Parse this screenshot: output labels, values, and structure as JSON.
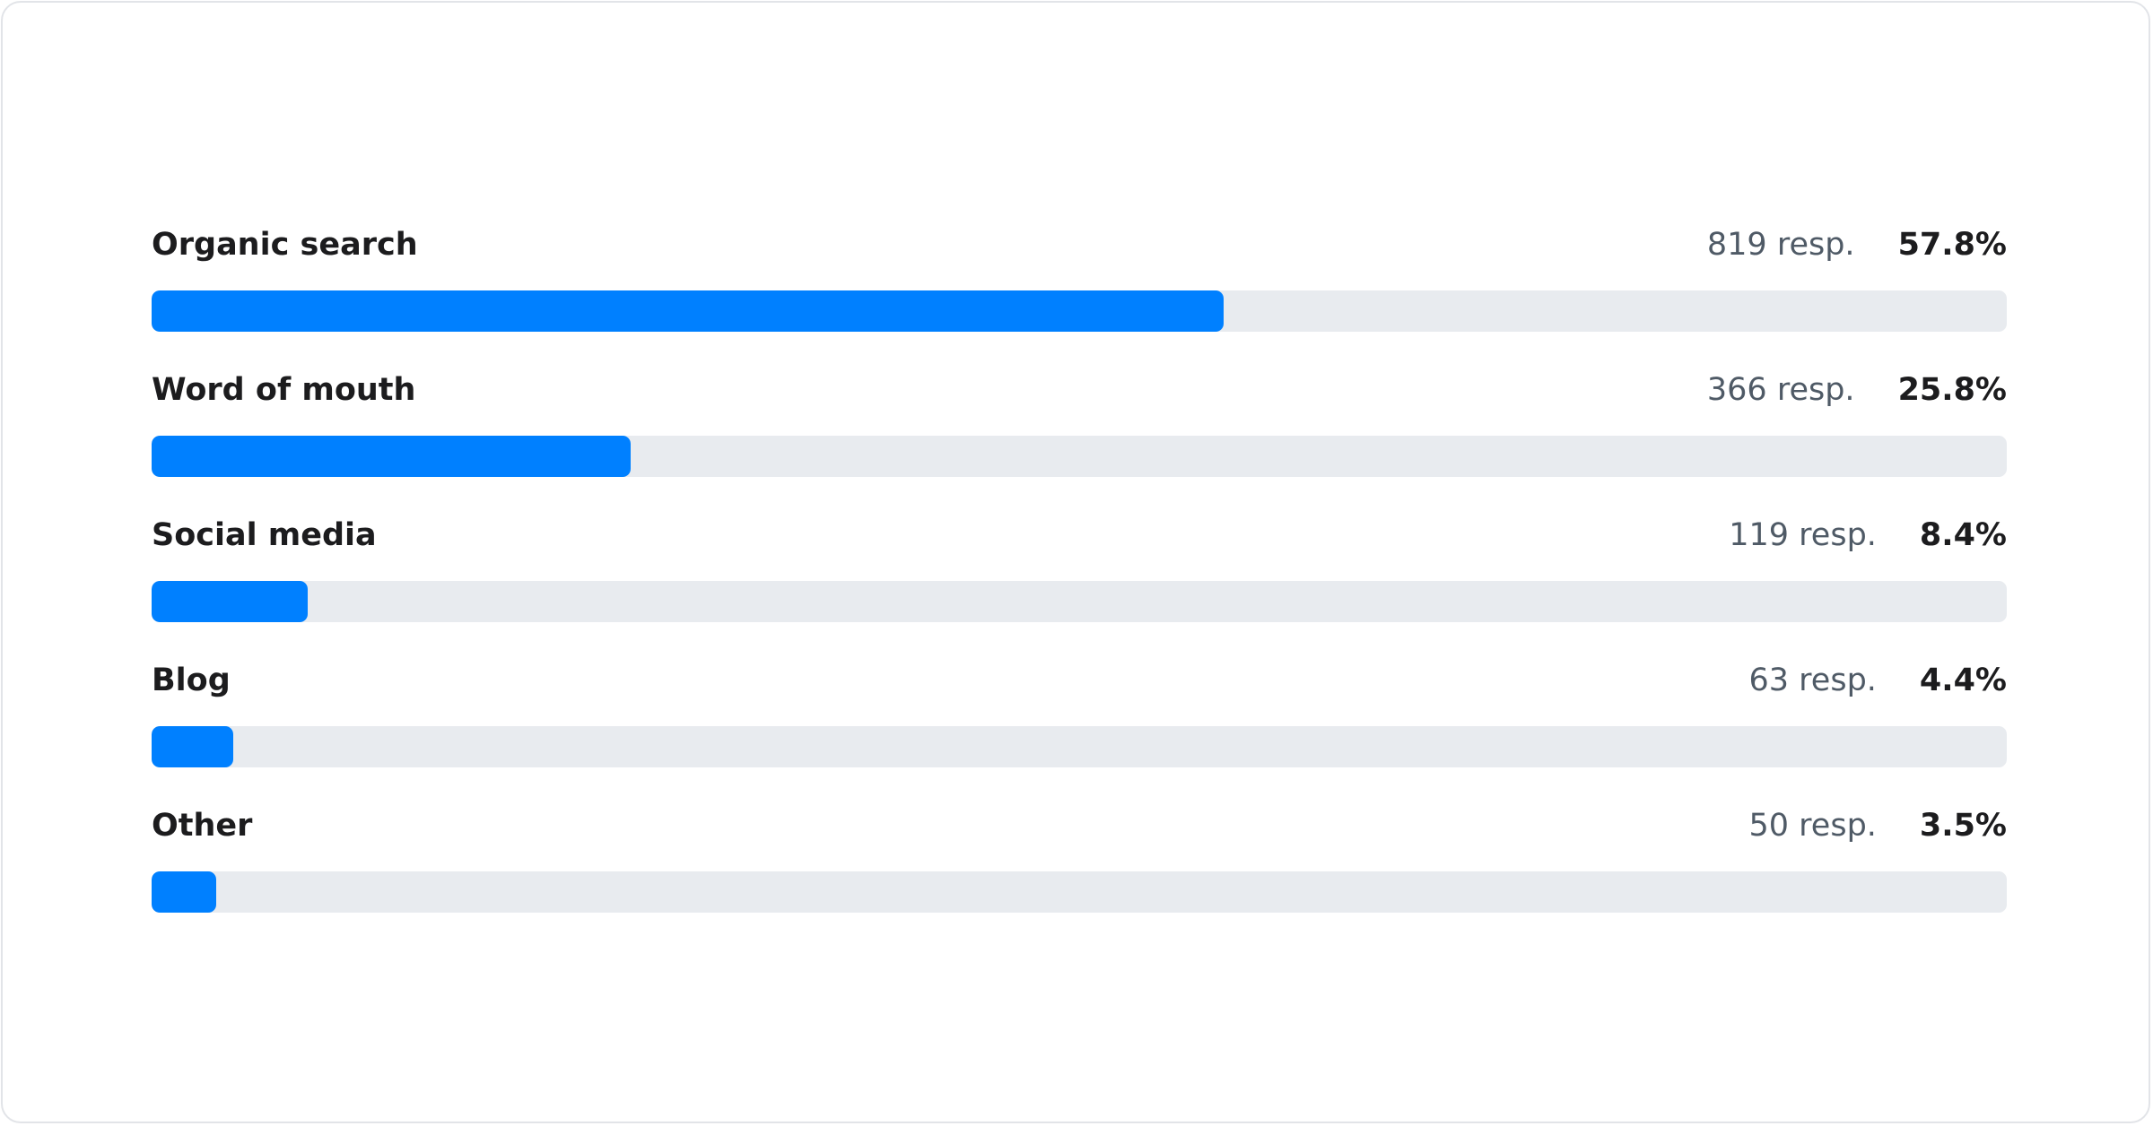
{
  "chart_data": {
    "type": "bar",
    "orientation": "horizontal",
    "categories": [
      "Organic search",
      "Word of mouth",
      "Social media",
      "Blog",
      "Other"
    ],
    "counts": [
      "819 resp.",
      "366 resp.",
      "119 resp.",
      "63 resp.",
      "50 resp."
    ],
    "percent_labels": [
      "57.8%",
      "25.8%",
      "8.4%",
      "4.4%",
      "3.5%"
    ],
    "values": [
      57.8,
      25.8,
      8.4,
      4.4,
      3.5
    ],
    "xlim": [
      0,
      100
    ],
    "colors": {
      "fill": "#0080ff",
      "track": "#e8ebef"
    }
  }
}
